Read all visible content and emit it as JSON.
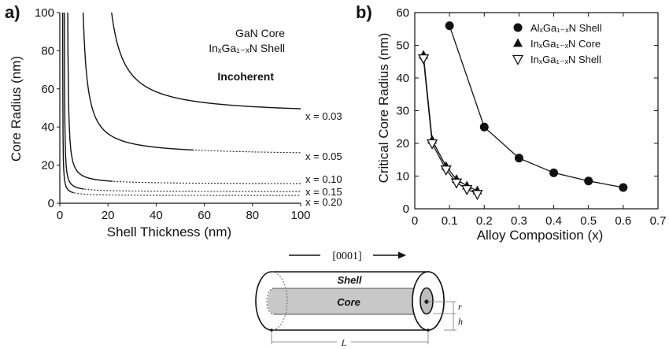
{
  "chart_data": [
    {
      "panel": "a)",
      "type": "line",
      "xlabel": "Shell Thickness (nm)",
      "ylabel": "Core Radius (nm)",
      "xlim": [
        0,
        100
      ],
      "ylim": [
        0,
        100
      ],
      "xticks": [
        0,
        20,
        40,
        60,
        80,
        100
      ],
      "yticks": [
        0,
        20,
        40,
        60,
        80,
        100
      ],
      "annotations": [
        "GaN Core",
        "InₓGa₁₋ₓN Shell",
        "Incoherent"
      ],
      "series": [
        {
          "name": "x = 0.03",
          "asymptote": 46,
          "k": 300,
          "start_x": 21.5,
          "solid_to_x": 100,
          "values_sample": [
            [
              22,
              100
            ],
            [
              30,
              69
            ],
            [
              40,
              59
            ],
            [
              60,
              52
            ],
            [
              100,
              46
            ]
          ]
        },
        {
          "name": "x = 0.05",
          "asymptote": 25,
          "k": 140,
          "start_x": 9.7,
          "solid_to_x": 56,
          "values_sample": [
            [
              10,
              100
            ],
            [
              20,
              35
            ],
            [
              40,
              28.5
            ],
            [
              56,
              26
            ],
            [
              100,
              25
            ]
          ]
        },
        {
          "name": "x = 0.10",
          "asymptote": 10,
          "k": 29,
          "start_x": 3.3,
          "solid_to_x": 22,
          "values_sample": [
            [
              3.3,
              100
            ],
            [
              10,
              13
            ],
            [
              22,
              11.3
            ],
            [
              100,
              10
            ]
          ]
        },
        {
          "name": "x = 0.15",
          "asymptote": 6,
          "k": 12,
          "start_x": 1.9,
          "solid_to_x": 10,
          "values_sample": [
            [
              2,
              100
            ],
            [
              10,
              7.2
            ],
            [
              100,
              6
            ]
          ]
        },
        {
          "name": "x = 0.20",
          "asymptote": 4,
          "k": 7,
          "start_x": 1.2,
          "solid_to_x": 6,
          "values_sample": [
            [
              1.2,
              100
            ],
            [
              6,
              5.2
            ],
            [
              100,
              4
            ]
          ]
        }
      ],
      "grid": false
    },
    {
      "panel": "b)",
      "type": "line",
      "xlabel": "Alloy Composition (x)",
      "ylabel": "Critical Core Radius (nm)",
      "xlim": [
        0,
        0.7
      ],
      "ylim": [
        0,
        60
      ],
      "xticks": [
        "0",
        "0.1",
        "0.2",
        "0.3",
        "0.4",
        "0.5",
        "0.6",
        "0.7"
      ],
      "yticks": [
        0,
        10,
        20,
        30,
        40,
        50,
        60
      ],
      "legend_position": "top-right",
      "series": [
        {
          "name": "AlₓGa₁₋ₓN Shell",
          "marker": "circle",
          "x": [
            0.1,
            0.2,
            0.3,
            0.4,
            0.5,
            0.6
          ],
          "y": [
            56,
            25,
            15.5,
            11,
            8.5,
            6.5
          ]
        },
        {
          "name": "InₓGa₁₋ₓN Core",
          "marker": "triangle-up",
          "x": [
            0.025,
            0.05,
            0.09,
            0.12,
            0.15,
            0.18
          ],
          "y": [
            47,
            21,
            13,
            9,
            7,
            5.5
          ]
        },
        {
          "name": "InₓGa₁₋ₓN Shell",
          "marker": "triangle-down-open",
          "x": [
            0.025,
            0.05,
            0.09,
            0.12,
            0.15,
            0.18
          ],
          "y": [
            46,
            20,
            12,
            8,
            6,
            4.5
          ]
        }
      ],
      "grid": false
    }
  ],
  "schematic": {
    "direction_label": "[0001]",
    "shell_label": "Shell",
    "core_label": "Core",
    "r_label": "r",
    "h_label": "h",
    "L_label": "L"
  }
}
